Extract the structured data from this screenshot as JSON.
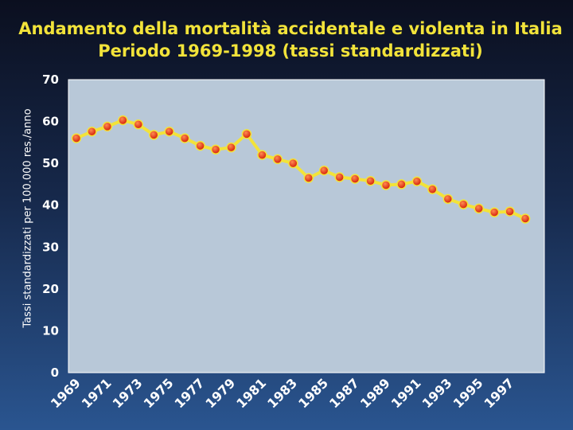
{
  "chart_data": {
    "type": "line",
    "title": "Andamento della mortalità accidentale e violenta in Italia",
    "subtitle": "Periodo 1969-1998 (tassi standardizzati)",
    "ylabel": "Tassi standardizzati per 100.000 res./anno",
    "xlabel": "",
    "ylim": [
      0,
      70
    ],
    "y_ticks": [
      "0",
      "10",
      "20",
      "30",
      "40",
      "50",
      "60",
      "70"
    ],
    "x_tick_labels": [
      "1969",
      "1971",
      "1973",
      "1975",
      "1977",
      "1979",
      "1981",
      "1983",
      "1985",
      "1987",
      "1989",
      "1991",
      "1993",
      "1995",
      "1997"
    ],
    "x": [
      1969,
      1970,
      1971,
      1972,
      1973,
      1974,
      1975,
      1976,
      1977,
      1978,
      1979,
      1980,
      1981,
      1982,
      1983,
      1984,
      1985,
      1986,
      1987,
      1988,
      1989,
      1990,
      1991,
      1992,
      1993,
      1994,
      1995,
      1996,
      1997,
      1998
    ],
    "series": [
      {
        "values": [
          56.0,
          57.6,
          58.8,
          60.3,
          59.3,
          56.8,
          57.6,
          56.0,
          54.2,
          53.3,
          53.8,
          57.0,
          52.0,
          51.0,
          50.0,
          46.5,
          48.3,
          46.7,
          46.3,
          45.8,
          44.8,
          45.0,
          45.7,
          43.8,
          41.5,
          40.2,
          39.2,
          38.3,
          38.5,
          36.8
        ]
      }
    ],
    "grid": false,
    "legend": "none",
    "colors": {
      "line": "#f2e33a",
      "marker": "#e02810",
      "marker_highlight": "#ff7a4a",
      "plot_background": "#b8c8d8",
      "text": "#ffffff",
      "title": "#f2e33a"
    }
  }
}
